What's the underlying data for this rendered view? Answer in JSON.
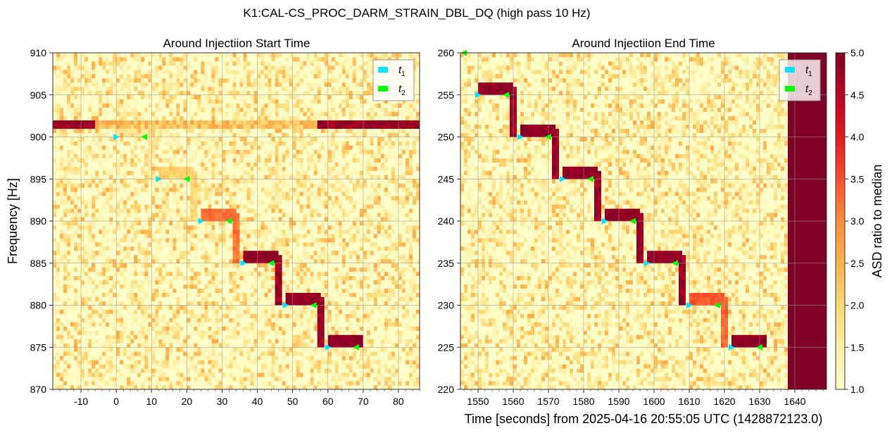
{
  "figure": {
    "title": "K1:CAL-CS_PROC_DARM_STRAIN_DBL_DQ (high pass 10 Hz)",
    "ylabel": "Frequency [Hz]",
    "xlabel": "Time [seconds] from 2025-04-16 20:55:05 UTC (1428872123.0)"
  },
  "colorbar": {
    "label": "ASD ratio to median",
    "range": [
      1.0,
      5.0
    ],
    "ticks": [
      "1.0",
      "1.5",
      "2.0",
      "2.5",
      "3.0",
      "3.5",
      "4.0",
      "4.5",
      "5.0"
    ],
    "colormap": [
      "#ffffcc",
      "#ffeda0",
      "#fed976",
      "#feb24c",
      "#fd8d3c",
      "#fc4e2a",
      "#e31a1c",
      "#bd0026",
      "#800026"
    ]
  },
  "legend": {
    "t1_label": "t1",
    "t2_label": "t2",
    "t1_color": "#00e5ff",
    "t2_color": "#00ff00"
  },
  "chart_data": [
    {
      "type": "heatmap",
      "title": "Around Injectiion Start Time",
      "xlim": [
        -18,
        86
      ],
      "ylim": [
        870,
        910
      ],
      "xticks": [
        "-10",
        "0",
        "10",
        "20",
        "30",
        "40",
        "50",
        "60",
        "70",
        "80"
      ],
      "yticks": [
        "870",
        "875",
        "880",
        "885",
        "890",
        "895",
        "900",
        "905",
        "910"
      ],
      "steps": [
        {
          "freq": 900,
          "t1": 0,
          "t2": 8,
          "intensity": 1.8
        },
        {
          "freq": 895,
          "t1": 12,
          "t2": 20,
          "intensity": 2.2
        },
        {
          "freq": 890,
          "t1": 24,
          "t2": 32,
          "intensity": 3.4
        },
        {
          "freq": 885,
          "t1": 36,
          "t2": 44,
          "intensity": 5.0
        },
        {
          "freq": 880,
          "t1": 48,
          "t2": 56,
          "intensity": 5.0
        },
        {
          "freq": 875,
          "t1": 60,
          "t2": 68,
          "intensity": 5.0
        }
      ],
      "t1_markers": [
        {
          "x": 0,
          "y": 900
        },
        {
          "x": 12,
          "y": 895
        },
        {
          "x": 24,
          "y": 890
        },
        {
          "x": 36,
          "y": 885
        },
        {
          "x": 48,
          "y": 880
        },
        {
          "x": 60,
          "y": 875
        }
      ],
      "t2_markers": [
        {
          "x": 8,
          "y": 900
        },
        {
          "x": 20,
          "y": 895
        },
        {
          "x": 32,
          "y": 890
        },
        {
          "x": 44,
          "y": 885
        },
        {
          "x": 56,
          "y": 880
        },
        {
          "x": 68,
          "y": 875
        }
      ],
      "hot_line": {
        "freq": 901.5,
        "ranges": [
          [
            -18,
            -6
          ],
          [
            57,
            86
          ]
        ]
      },
      "noise_seed": 11
    },
    {
      "type": "heatmap",
      "title": "Around Injectiion End Time",
      "xlim": [
        1545,
        1649
      ],
      "ylim": [
        220,
        260
      ],
      "xticks": [
        "1550",
        "1560",
        "1570",
        "1580",
        "1590",
        "1600",
        "1610",
        "1620",
        "1630",
        "1640"
      ],
      "yticks": [
        "220",
        "225",
        "230",
        "235",
        "240",
        "245",
        "250",
        "255",
        "260"
      ],
      "steps": [
        {
          "freq": 255,
          "t1": 1550,
          "t2": 1558,
          "intensity": 5.0
        },
        {
          "freq": 250,
          "t1": 1562,
          "t2": 1570,
          "intensity": 5.0
        },
        {
          "freq": 245,
          "t1": 1574,
          "t2": 1582,
          "intensity": 5.0
        },
        {
          "freq": 240,
          "t1": 1586,
          "t2": 1594,
          "intensity": 5.0
        },
        {
          "freq": 235,
          "t1": 1598,
          "t2": 1606,
          "intensity": 5.0
        },
        {
          "freq": 230,
          "t1": 1610,
          "t2": 1618,
          "intensity": 3.6
        },
        {
          "freq": 225,
          "t1": 1622,
          "t2": 1630,
          "intensity": 5.0
        }
      ],
      "t1_markers": [
        {
          "x": 1550,
          "y": 255
        },
        {
          "x": 1562,
          "y": 250
        },
        {
          "x": 1574,
          "y": 245
        },
        {
          "x": 1586,
          "y": 240
        },
        {
          "x": 1598,
          "y": 235
        },
        {
          "x": 1610,
          "y": 230
        },
        {
          "x": 1622,
          "y": 225
        }
      ],
      "t2_markers": [
        {
          "x": 1546,
          "y": 260
        },
        {
          "x": 1558,
          "y": 255
        },
        {
          "x": 1570,
          "y": 250
        },
        {
          "x": 1582,
          "y": 245
        },
        {
          "x": 1594,
          "y": 240
        },
        {
          "x": 1606,
          "y": 235
        },
        {
          "x": 1618,
          "y": 230
        },
        {
          "x": 1630,
          "y": 225
        }
      ],
      "saturated_region": {
        "x_from": 1638,
        "x_to": 1649
      },
      "noise_seed": 29
    }
  ]
}
